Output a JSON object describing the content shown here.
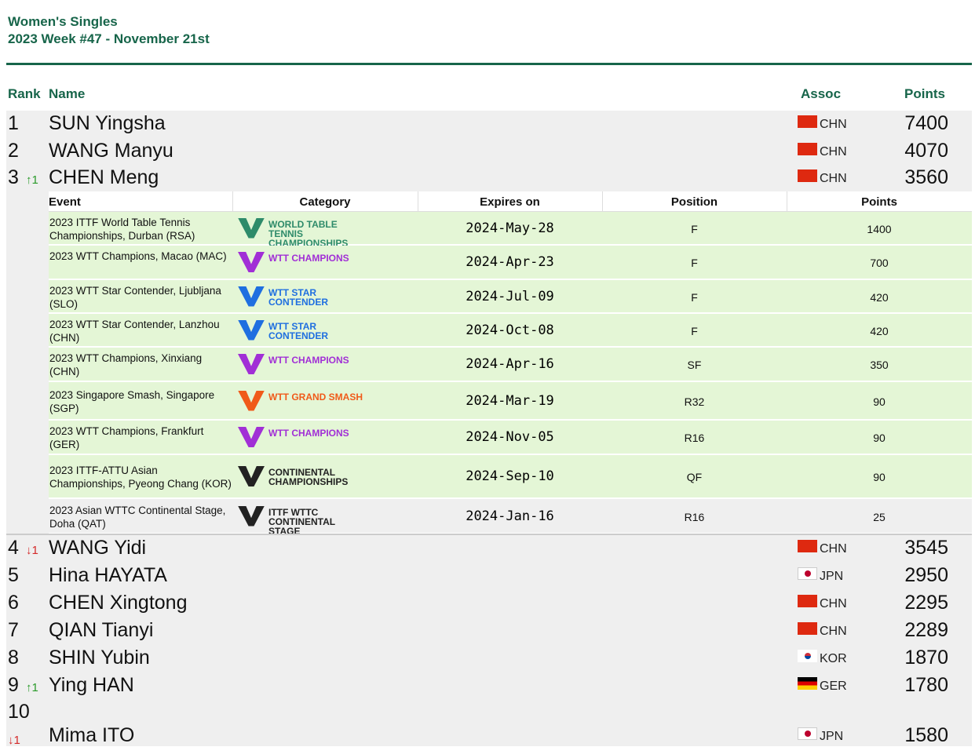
{
  "header": {
    "title": "Women's Singles",
    "subtitle": "2023 Week #47 - November 21st"
  },
  "table": {
    "columns": [
      "Rank",
      "Name",
      "Assoc",
      "Points"
    ],
    "rows": [
      {
        "rank": "1",
        "name": "SUN Yingsha",
        "assoc": "CHN",
        "points": "7400"
      },
      {
        "rank": "2",
        "name": "WANG Manyu",
        "assoc": "CHN",
        "points": "4070"
      },
      {
        "rank": "3",
        "change": "↑1",
        "name": "CHEN Meng",
        "assoc": "CHN",
        "points": "3560"
      },
      {
        "rank": "4",
        "change": "↓1",
        "name": "WANG Yidi",
        "assoc": "CHN",
        "points": "3545"
      },
      {
        "rank": "5",
        "name": "Hina HAYATA",
        "assoc": "JPN",
        "points": "2950"
      },
      {
        "rank": "6",
        "name": "CHEN Xingtong",
        "assoc": "CHN",
        "points": "2295"
      },
      {
        "rank": "7",
        "name": "QIAN Tianyi",
        "assoc": "CHN",
        "points": "2289"
      },
      {
        "rank": "8",
        "name": "SHIN Yubin",
        "assoc": "KOR",
        "points": "1870"
      },
      {
        "rank": "9",
        "change": "↑1",
        "name": "Ying HAN",
        "assoc": "GER",
        "points": "1780"
      },
      {
        "rank": "10",
        "change": "↓1",
        "name": "Mima ITO",
        "assoc": "JPN",
        "points": "1580"
      }
    ]
  },
  "details": {
    "columns": [
      "Event",
      "Category",
      "Expires on",
      "Position",
      "Points"
    ],
    "rows": [
      {
        "event": "2023 ITTF World Table Tennis Championships, Durban (RSA)",
        "category": "World Table Tennis Championships",
        "expires": "2024-May-28",
        "position": "F",
        "points": "1400"
      },
      {
        "event": "2023 WTT Champions, Macao (MAC)",
        "category": "WTT Champions",
        "expires": "2024-Apr-23",
        "position": "F",
        "points": "700"
      },
      {
        "event": "2023 WTT Star Contender, Ljubljana (SLO)",
        "category": "WTT Star Contender",
        "expires": "2024-Jul-09",
        "position": "F",
        "points": "420"
      },
      {
        "event": "2023 WTT Star Contender, Lanzhou (CHN)",
        "category": "WTT Star Contender",
        "expires": "2024-Oct-08",
        "position": "F",
        "points": "420"
      },
      {
        "event": "2023 WTT Champions, Xinxiang (CHN)",
        "category": "WTT Champions",
        "expires": "2024-Apr-16",
        "position": "SF",
        "points": "350"
      },
      {
        "event": "2023 Singapore Smash, Singapore (SGP)",
        "category": "WTT Grand Smash",
        "expires": "2024-Mar-19",
        "position": "R32",
        "points": "90"
      },
      {
        "event": "2023 WTT Champions, Frankfurt (GER)",
        "category": "WTT Champions",
        "expires": "2024-Nov-05",
        "position": "R16",
        "points": "90"
      },
      {
        "event": "2023 ITTF-ATTU Asian Championships, Pyeong Chang (KOR)",
        "category": "Continental Championships",
        "expires": "2024-Sep-10",
        "position": "QF",
        "points": "90"
      },
      {
        "event": "2023 Asian WTTC Continental Stage, Doha (QAT)",
        "category": "ITTF WTTC Continental Stage",
        "expires": "2024-Jan-16",
        "position": "R16",
        "points": "25"
      }
    ]
  }
}
